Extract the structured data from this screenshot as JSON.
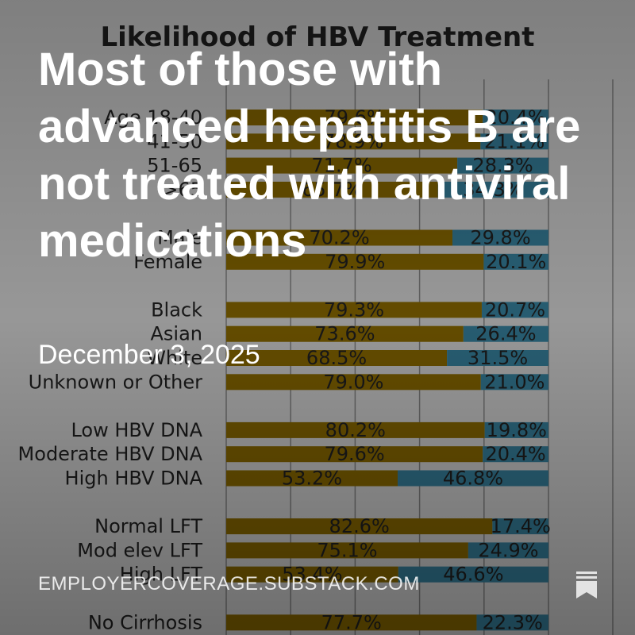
{
  "post": {
    "headline": "Most of those with advanced hepatitis B are not treated with antiviral medications",
    "date": "December 3, 2025",
    "site": "EMPLOYERCOVERAGE.SUBSTACK.COM",
    "icon": "bookmark-icon"
  },
  "colors": {
    "treated": "#a07a00",
    "not_treated": "#3f95b6",
    "chart_bg": "#f4f4f4",
    "gridline": "#9a9a9a"
  },
  "chart_data": {
    "type": "bar",
    "orientation": "horizontal",
    "stacked": true,
    "title": "Likelihood of HBV Treatment",
    "categories": [
      "Age 18-40",
      "41-50",
      "51-65",
      ">65",
      "Male",
      "Female",
      "Black",
      "Asian",
      "White",
      "Unknown or Other",
      "Low HBV DNA",
      "Moderate HBV DNA",
      "High HBV DNA",
      "Normal LFT",
      "Mod elev LFT",
      "High LFT",
      "No Cirrhosis"
    ],
    "groups": [
      [
        0,
        1,
        2,
        3
      ],
      [
        4,
        5
      ],
      [
        6,
        7,
        8,
        9
      ],
      [
        10,
        11,
        12
      ],
      [
        13,
        14,
        15
      ],
      [
        16
      ]
    ],
    "series": [
      {
        "values": [
          79.6,
          78.9,
          71.7,
          65.7,
          70.2,
          79.9,
          79.3,
          73.6,
          68.5,
          79.0,
          80.2,
          79.6,
          53.2,
          82.6,
          75.1,
          53.4,
          77.7
        ]
      },
      {
        "values": [
          20.4,
          21.1,
          28.3,
          34.3,
          29.8,
          20.1,
          20.7,
          26.4,
          31.5,
          21.0,
          19.8,
          20.4,
          46.8,
          17.4,
          24.9,
          46.6,
          22.3
        ]
      }
    ],
    "labels_a": [
      "79.6%",
      "78.9%",
      "71.7%",
      "65.7%",
      "70.2%",
      "79.9%",
      "79.3%",
      "73.6%",
      "68.5%",
      "79.0%",
      "80.2%",
      "79.6%",
      "53.2%",
      "82.6%",
      "75.1%",
      "53.4%",
      "77.7%"
    ],
    "labels_b": [
      "20.4%",
      "21.1%",
      "28.3%",
      "34.3%",
      "29.8%",
      "20.1%",
      "20.7%",
      "26.4%",
      "31.5%",
      "21.0%",
      "19.8%",
      "20.4%",
      "46.8%",
      "17.4%",
      "24.9%",
      "46.6%",
      "22.3%"
    ],
    "xlim": [
      0,
      100
    ],
    "grid": true
  }
}
